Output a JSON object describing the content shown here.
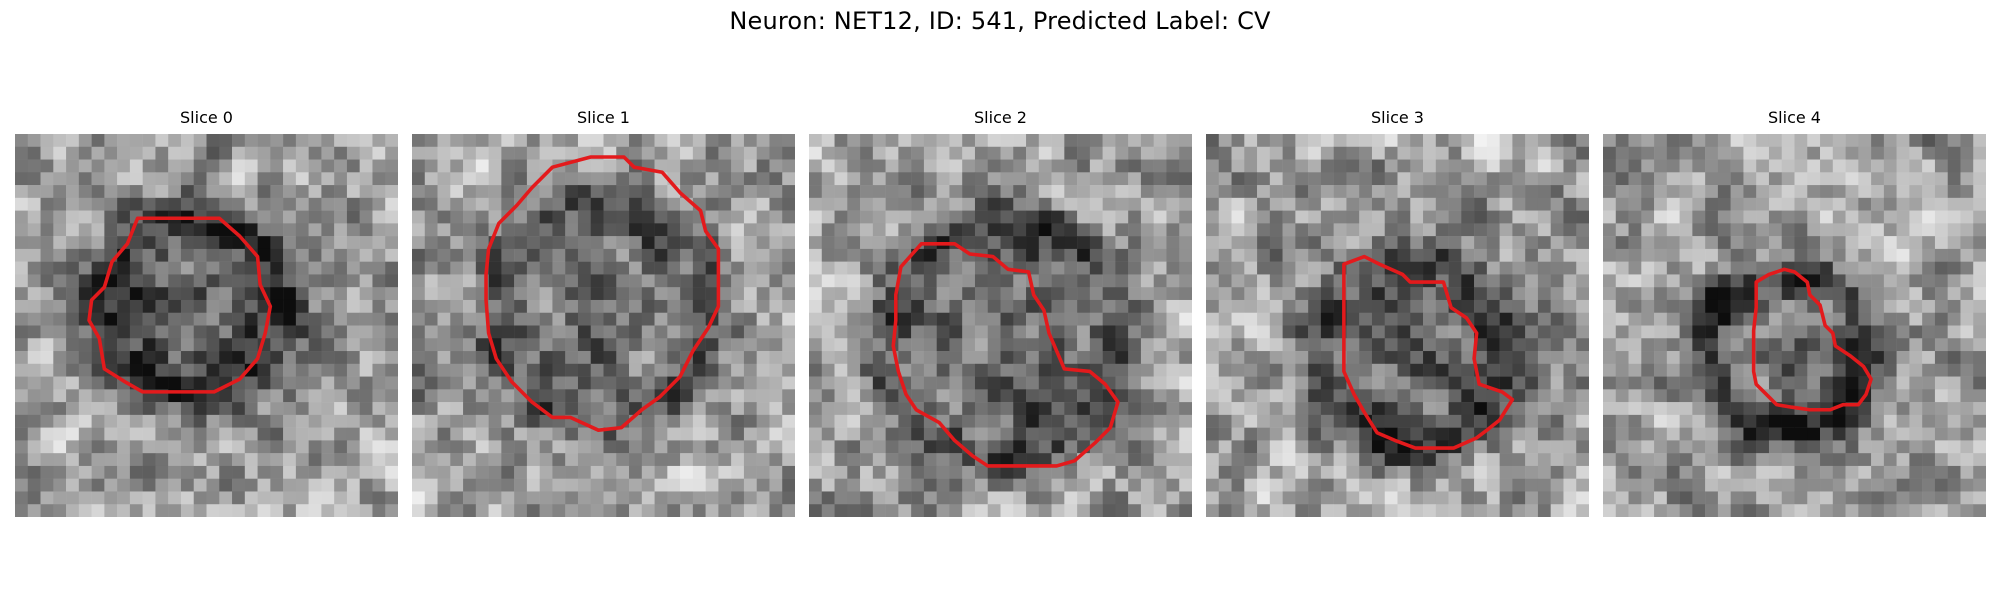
{
  "figure": {
    "title": "Neuron: NET12, ID: 541, Predicted Label: CV",
    "contour_color": "#e31a1c"
  },
  "panels": [
    {
      "title": "Slice 0"
    },
    {
      "title": "Slice 1"
    },
    {
      "title": "Slice 2"
    },
    {
      "title": "Slice 3"
    },
    {
      "title": "Slice 4"
    }
  ]
}
